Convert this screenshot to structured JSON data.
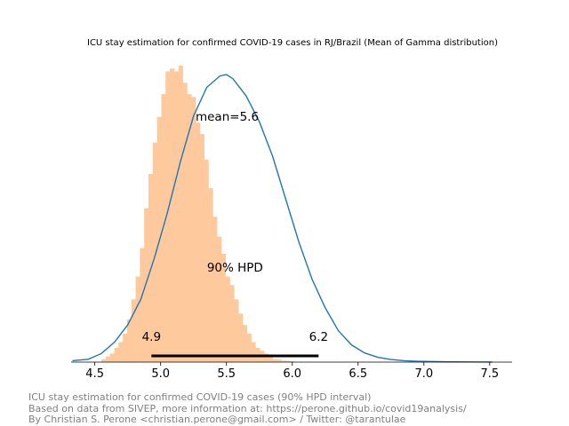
{
  "chart_data": {
    "type": "histogram",
    "title": "ICU stay estimation for confirmed COVID-19 cases in RJ/Brazil (Mean of Gamma distribution)",
    "xlabel": "",
    "ylabel": "",
    "xlim": [
      4.32,
      7.67
    ],
    "x_ticks": [
      "4.5",
      "5.0",
      "5.5",
      "6.0",
      "6.5",
      "7.0",
      "7.5"
    ],
    "y_axis_visible": false,
    "histogram": {
      "color": "#ffc99e",
      "bin_width": 0.0325,
      "bin_start": 4.55,
      "counts": [
        1,
        2,
        3,
        5,
        7,
        10,
        15,
        22,
        30,
        40,
        54,
        66,
        77,
        86,
        94,
        102,
        103,
        102,
        104,
        98,
        94,
        93,
        84,
        80,
        71,
        61,
        51,
        44,
        38,
        30,
        27,
        22,
        17,
        13,
        10,
        7,
        5,
        4,
        3,
        2,
        1,
        1,
        0.5,
        0.5,
        0.3
      ]
    },
    "kde_curve": {
      "color": "#1f77b4",
      "x": [
        4.33,
        4.45,
        4.55,
        4.65,
        4.75,
        4.85,
        4.95,
        5.05,
        5.15,
        5.25,
        5.35,
        5.45,
        5.5,
        5.55,
        5.65,
        5.75,
        5.85,
        5.95,
        6.05,
        6.15,
        6.25,
        6.35,
        6.45,
        6.55,
        6.65,
        6.75,
        6.85,
        6.95,
        7.05,
        7.2,
        7.35,
        7.52
      ],
      "y": [
        0.5,
        1,
        3,
        7,
        13,
        22,
        36,
        52,
        70,
        86,
        96,
        100,
        100.5,
        99,
        93,
        84,
        72,
        57,
        42,
        29,
        19,
        11,
        6,
        3.2,
        1.7,
        0.9,
        0.5,
        0.3,
        0.2,
        0.1,
        0.05,
        0.02
      ]
    },
    "annotations": {
      "mean_label": "mean=5.6",
      "hpd_label": "90% HPD",
      "hpd_low_label": "4.9",
      "hpd_high_label": "6.2"
    },
    "hpd_interval": [
      4.93,
      6.2
    ],
    "mean": 5.6
  },
  "footer": {
    "line1": "ICU stay estimation for confirmed COVID-19 cases (90% HPD interval)",
    "line2": "Based on data from SIVEP, more information at: https://perone.github.io/covid19analysis/",
    "line3": "By Christian S. Perone <christian.perone@gmail.com> / Twitter: @tarantulae"
  }
}
